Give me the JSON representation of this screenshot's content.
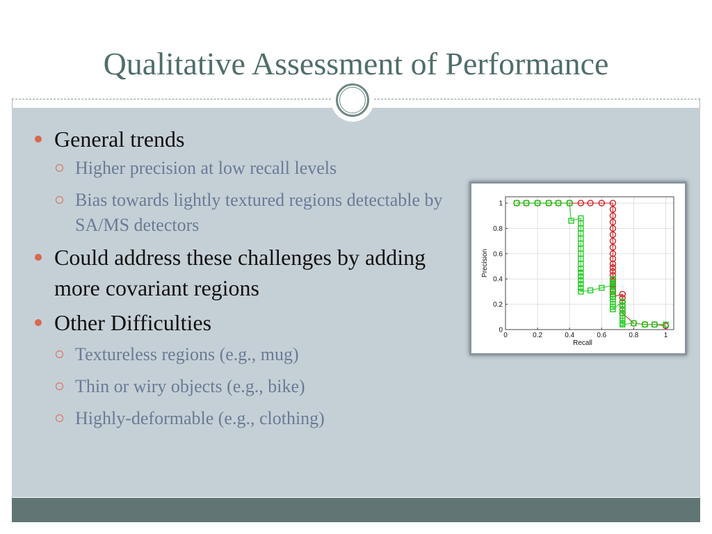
{
  "slide": {
    "title": "Qualitative Assessment of Performance",
    "bullets": [
      {
        "level": 1,
        "text": "General trends"
      },
      {
        "level": 2,
        "text": "Higher precision at low recall levels"
      },
      {
        "level": 2,
        "text": "Bias towards lightly textured regions detectable by SA/MS detectors"
      },
      {
        "level": 1,
        "text": "Could address these challenges by adding more covariant regions"
      },
      {
        "level": 1,
        "text": "Other Difficulties"
      },
      {
        "level": 2,
        "text": "Textureless regions (e.g., mug)"
      },
      {
        "level": 2,
        "text": "Thin or wiry objects (e.g., bike)"
      },
      {
        "level": 2,
        "text": "Highly-deformable (e.g., clothing)"
      }
    ]
  },
  "colors": {
    "title_text": "#4f6e6b",
    "content_background": "#c5d0d6",
    "footer_bar": "#607574",
    "bullet_marker": "#d7694f",
    "level2_text": "#6a7a96",
    "series_red": "#cc2222",
    "series_green": "#22cc22"
  },
  "chart_data": {
    "type": "line",
    "title": "",
    "xlabel": "Recall",
    "ylabel": "Precision",
    "xlim": [
      0,
      1.05
    ],
    "ylim": [
      0,
      1.05
    ],
    "xticks": [
      0,
      0.2,
      0.4,
      0.6,
      0.8,
      1
    ],
    "yticks": [
      0,
      0.2,
      0.4,
      0.6,
      0.8,
      1
    ],
    "xtick_labels": [
      "0",
      "0.2",
      "0.4",
      "0.6",
      "0.8",
      "1"
    ],
    "ytick_labels": [
      "0",
      "0.2",
      "0.4",
      "0.6",
      "0.8",
      "1"
    ],
    "grid": true,
    "legend": "none",
    "series": [
      {
        "marker": "circle",
        "color": "#cc2222",
        "x": [
          0.07,
          0.13,
          0.2,
          0.27,
          0.33,
          0.4,
          0.47,
          0.53,
          0.6,
          0.67,
          0.67,
          0.67,
          0.67,
          0.67,
          0.67,
          0.67,
          0.67,
          0.67,
          0.67,
          0.67,
          0.67,
          0.67,
          0.67,
          0.67,
          0.67,
          0.67,
          0.67,
          0.67,
          0.67,
          0.67,
          0.67,
          0.73,
          0.73,
          0.73,
          0.73,
          0.73,
          0.73,
          0.8,
          0.87,
          0.93,
          1.0
        ],
        "y": [
          1.0,
          1.0,
          1.0,
          1.0,
          1.0,
          1.0,
          1.0,
          1.0,
          1.0,
          1.0,
          0.95,
          0.9,
          0.85,
          0.8,
          0.75,
          0.7,
          0.65,
          0.6,
          0.56,
          0.52,
          0.49,
          0.46,
          0.43,
          0.4,
          0.38,
          0.36,
          0.34,
          0.32,
          0.3,
          0.28,
          0.26,
          0.28,
          0.25,
          0.22,
          0.19,
          0.16,
          0.13,
          0.05,
          0.04,
          0.04,
          0.03
        ]
      },
      {
        "marker": "square",
        "color": "#22cc22",
        "x": [
          0.07,
          0.13,
          0.2,
          0.27,
          0.33,
          0.4,
          0.41,
          0.47,
          0.47,
          0.47,
          0.47,
          0.47,
          0.47,
          0.47,
          0.47,
          0.47,
          0.47,
          0.47,
          0.47,
          0.47,
          0.47,
          0.47,
          0.47,
          0.47,
          0.53,
          0.6,
          0.67,
          0.67,
          0.67,
          0.67,
          0.67,
          0.67,
          0.67,
          0.67,
          0.67,
          0.67,
          0.67,
          0.67,
          0.73,
          0.73,
          0.73,
          0.73,
          0.73,
          0.73,
          0.73,
          0.73,
          0.73,
          0.8,
          0.87,
          0.93,
          1.0
        ],
        "y": [
          1.0,
          1.0,
          1.0,
          1.0,
          1.0,
          1.0,
          0.86,
          0.88,
          0.84,
          0.8,
          0.76,
          0.72,
          0.68,
          0.64,
          0.6,
          0.56,
          0.52,
          0.48,
          0.45,
          0.42,
          0.39,
          0.36,
          0.33,
          0.3,
          0.31,
          0.33,
          0.35,
          0.4,
          0.37,
          0.34,
          0.31,
          0.28,
          0.26,
          0.24,
          0.22,
          0.2,
          0.18,
          0.16,
          0.22,
          0.19,
          0.16,
          0.13,
          0.11,
          0.09,
          0.07,
          0.05,
          0.04,
          0.05,
          0.04,
          0.04,
          0.04
        ]
      }
    ]
  }
}
